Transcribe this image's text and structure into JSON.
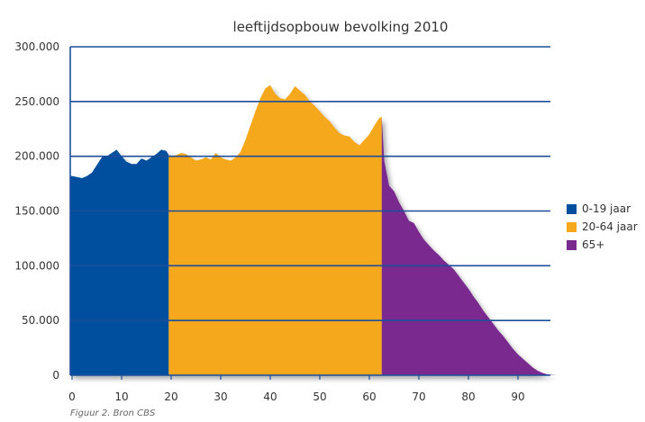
{
  "caption": "Figuur 2. Bron CBS",
  "colors": {
    "gridline": "#1c4e9b",
    "axis": "#1c4e9b",
    "series_0_19": "#004f9f",
    "series_20_64": "#f6a81d",
    "series_65_plus": "#7a2a8f"
  },
  "chart_data": {
    "type": "area",
    "title": "leeftijdsopbouw bevolking 2010",
    "xlabel": "",
    "ylabel": "",
    "xlim": [
      0,
      100
    ],
    "ylim": [
      0,
      300000
    ],
    "xticks": [
      0,
      10,
      20,
      30,
      40,
      50,
      60,
      70,
      80,
      90
    ],
    "yticks": [
      0,
      50000,
      100000,
      150000,
      200000,
      250000,
      300000
    ],
    "ytick_labels": [
      "0",
      "50.000",
      "100.000",
      "150.000",
      "200.000",
      "250.000",
      "300.000"
    ],
    "grid": true,
    "legend_position": "right",
    "series": [
      {
        "name": "0-19 jaar",
        "color": "#004f9f",
        "x": [
          0,
          1,
          2,
          3,
          4,
          5,
          6,
          7,
          8,
          9,
          10,
          11,
          12,
          13,
          14,
          15,
          16,
          17,
          18,
          19,
          19.5
        ],
        "values": [
          182000,
          181000,
          180000,
          182000,
          185000,
          192000,
          199000,
          200000,
          203000,
          206000,
          200000,
          195000,
          193000,
          193000,
          198000,
          196000,
          199000,
          202000,
          206000,
          205000,
          201000
        ]
      },
      {
        "name": "20-64 jaar",
        "color": "#f6a81d",
        "x": [
          19.5,
          20,
          21,
          22,
          23,
          24,
          25,
          26,
          27,
          28,
          29,
          30,
          31,
          32,
          33,
          34,
          35,
          36,
          37,
          38,
          39,
          40,
          41,
          42,
          43,
          44,
          45,
          46,
          47,
          48,
          49,
          50,
          51,
          52,
          53,
          54,
          55,
          56,
          57,
          58,
          59,
          60,
          61,
          62,
          62.5
        ],
        "values": [
          201000,
          200000,
          201000,
          203000,
          202000,
          199000,
          196000,
          197000,
          199000,
          197000,
          203000,
          199000,
          197000,
          196000,
          199000,
          204000,
          215000,
          228000,
          241000,
          253000,
          262000,
          265000,
          257000,
          253000,
          252000,
          257000,
          264000,
          260000,
          256000,
          250000,
          246000,
          241000,
          236000,
          232000,
          226000,
          221000,
          219000,
          218000,
          213000,
          210000,
          215000,
          220000,
          228000,
          235000,
          236000
        ]
      },
      {
        "name": "65+",
        "color": "#7a2a8f",
        "x": [
          62.5,
          63,
          64,
          65,
          66,
          67,
          68,
          69,
          70,
          71,
          72,
          73,
          74,
          75,
          76,
          77,
          78,
          79,
          80,
          81,
          82,
          83,
          84,
          85,
          86,
          87,
          88,
          89,
          90,
          91,
          92,
          93,
          94,
          95,
          96,
          97,
          98
        ],
        "values": [
          236000,
          196000,
          173000,
          168000,
          158000,
          150000,
          141000,
          139000,
          131000,
          124000,
          119000,
          114000,
          110000,
          105000,
          101000,
          97000,
          91000,
          85000,
          79000,
          72000,
          66000,
          59000,
          53000,
          47000,
          41000,
          36000,
          30000,
          24000,
          19000,
          15000,
          11000,
          7000,
          4000,
          2000,
          700,
          200,
          0
        ]
      }
    ]
  }
}
